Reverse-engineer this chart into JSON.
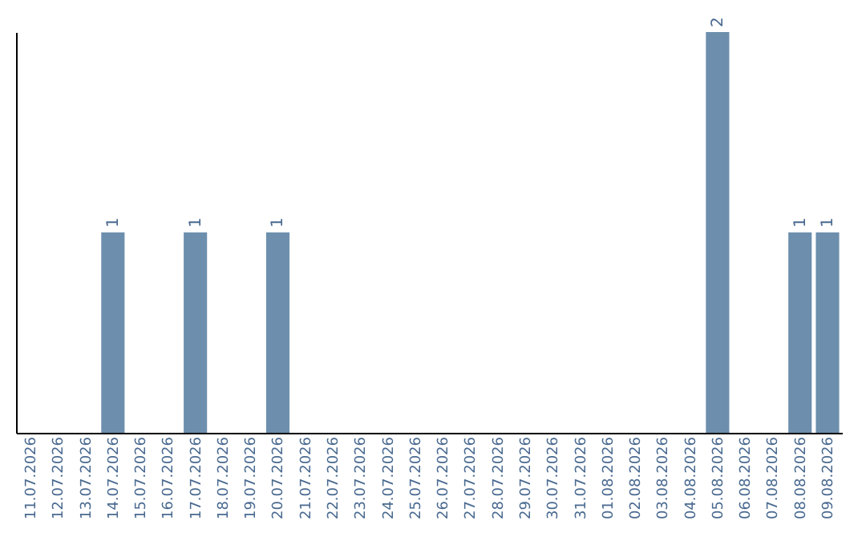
{
  "chart_data": {
    "type": "bar",
    "categories": [
      "11.07.2026",
      "12.07.2026",
      "13.07.2026",
      "14.07.2026",
      "15.07.2026",
      "16.07.2026",
      "17.07.2026",
      "18.07.2026",
      "19.07.2026",
      "20.07.2026",
      "21.07.2026",
      "22.07.2026",
      "23.07.2026",
      "24.07.2026",
      "25.07.2026",
      "26.07.2026",
      "27.07.2026",
      "28.07.2026",
      "29.07.2026",
      "30.07.2026",
      "31.07.2026",
      "01.08.2026",
      "02.08.2026",
      "03.08.2026",
      "04.08.2026",
      "05.08.2026",
      "06.08.2026",
      "07.08.2026",
      "08.08.2026",
      "09.08.2026"
    ],
    "values": [
      0,
      0,
      0,
      1,
      0,
      0,
      1,
      0,
      0,
      1,
      0,
      0,
      0,
      0,
      0,
      0,
      0,
      0,
      0,
      0,
      0,
      0,
      0,
      0,
      0,
      2,
      0,
      0,
      1,
      1
    ],
    "value_labels": [
      null,
      null,
      null,
      "1",
      null,
      null,
      "1",
      null,
      null,
      "1",
      null,
      null,
      null,
      null,
      null,
      null,
      null,
      null,
      null,
      null,
      null,
      null,
      null,
      null,
      null,
      "2",
      null,
      null,
      "1",
      "1"
    ],
    "color": "#6d8fad",
    "tick_labels": "x",
    "grid": false
  }
}
